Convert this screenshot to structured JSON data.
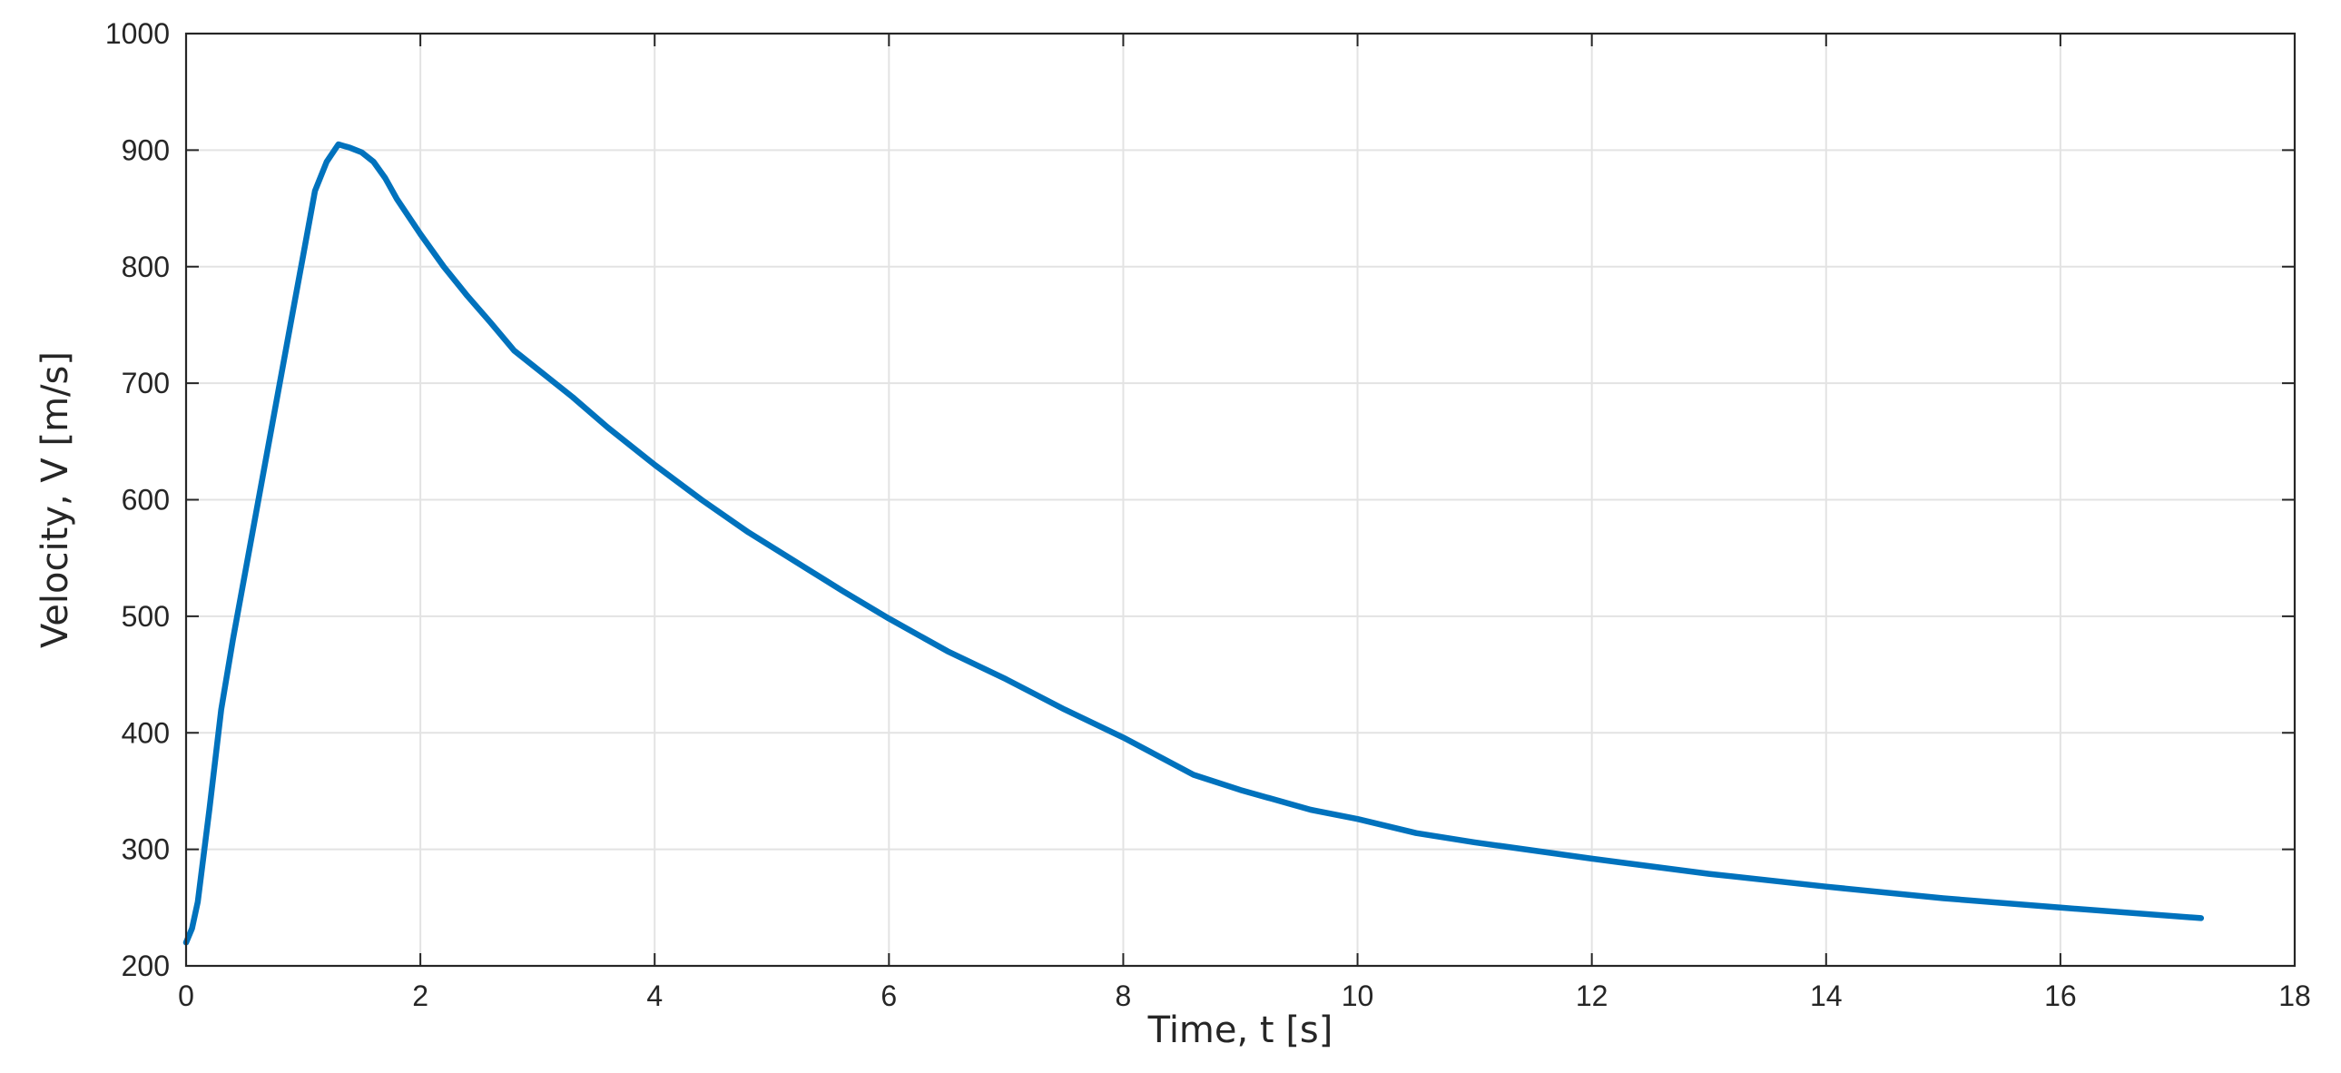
{
  "chart_data": {
    "type": "line",
    "title": "",
    "xlabel": "Time, t [s]",
    "ylabel": "Velocity, V [m/s]",
    "xlim": [
      0,
      18
    ],
    "ylim": [
      200,
      1000
    ],
    "xticks": [
      0,
      2,
      4,
      6,
      8,
      10,
      12,
      14,
      16,
      18
    ],
    "yticks": [
      200,
      300,
      400,
      500,
      600,
      700,
      800,
      900,
      1000
    ],
    "xtick_labels": [
      "0",
      "2",
      "4",
      "6",
      "8",
      "10",
      "12",
      "14",
      "16",
      "18"
    ],
    "ytick_labels": [
      "200",
      "300",
      "400",
      "500",
      "600",
      "700",
      "800",
      "900",
      "1000"
    ],
    "grid": true,
    "legend": "none",
    "series": [
      {
        "color": "#0072bd",
        "x": [
          0,
          0.05,
          0.1,
          0.2,
          0.3,
          0.4,
          0.5,
          0.6,
          0.7,
          0.8,
          0.9,
          1.0,
          1.1,
          1.2,
          1.3,
          1.4,
          1.5,
          1.6,
          1.7,
          1.8,
          2.0,
          2.2,
          2.4,
          2.6,
          2.8,
          3.0,
          3.3,
          3.6,
          4.0,
          4.4,
          4.8,
          5.2,
          5.6,
          6.0,
          6.5,
          7.0,
          7.5,
          8.0,
          8.6,
          9.0,
          9.6,
          10.0,
          10.5,
          11.0,
          12.0,
          13.0,
          14.0,
          15.0,
          16.0,
          17.2
        ],
        "y": [
          220,
          232,
          255,
          335,
          420,
          480,
          535,
          590,
          645,
          700,
          755,
          810,
          865,
          890,
          905,
          902,
          898,
          890,
          876,
          858,
          828,
          800,
          775,
          752,
          728,
          712,
          688,
          662,
          630,
          600,
          572,
          547,
          522,
          498,
          470,
          446,
          420,
          396,
          364,
          351,
          334,
          326,
          314,
          306,
          292,
          279,
          268,
          258,
          250,
          241
        ]
      }
    ]
  }
}
